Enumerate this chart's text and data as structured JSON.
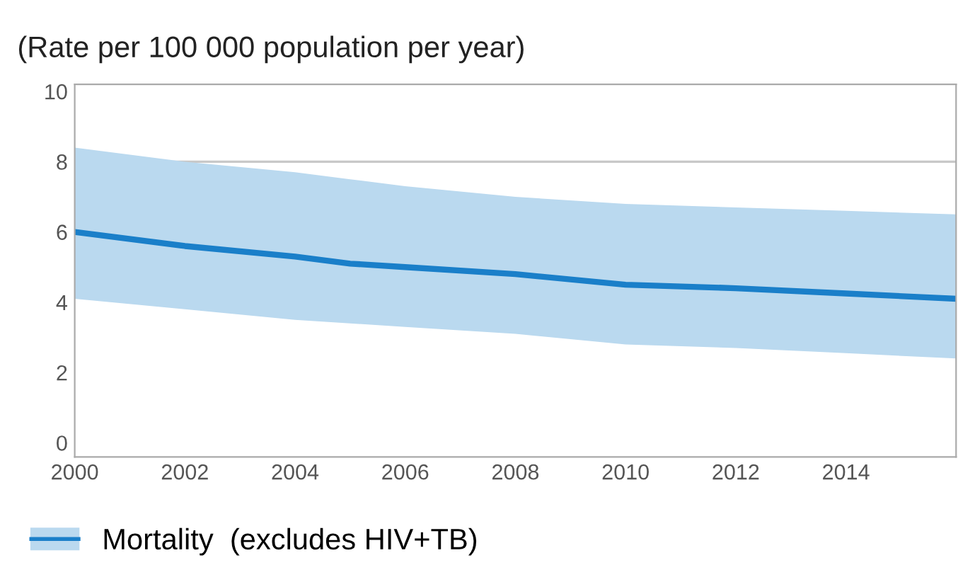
{
  "chart_data": {
    "type": "line",
    "title": "(Rate per 100 000 population per year)",
    "x": [
      2000,
      2002,
      2004,
      2005,
      2006,
      2008,
      2010,
      2012,
      2014,
      2016
    ],
    "series": [
      {
        "name": "Mortality  (excludes HIV+TB)",
        "color": "#1a7fc9",
        "values": [
          6.0,
          5.6,
          5.3,
          5.1,
          5.0,
          4.8,
          4.5,
          4.4,
          4.25,
          4.1
        ],
        "lower": [
          4.1,
          3.8,
          3.5,
          3.4,
          3.3,
          3.1,
          2.8,
          2.7,
          2.55,
          2.4
        ],
        "upper": [
          8.4,
          8.0,
          7.7,
          7.5,
          7.3,
          7.0,
          6.8,
          6.7,
          6.6,
          6.5
        ]
      }
    ],
    "xlim": [
      2000,
      2016
    ],
    "ylim": [
      -0.4,
      10.2
    ],
    "xticks": [
      2000,
      2002,
      2004,
      2006,
      2008,
      2010,
      2012,
      2014
    ],
    "yticks": [
      0,
      2,
      4,
      6,
      8,
      10
    ],
    "ref_lines": [
      {
        "axis": "y",
        "value": 8,
        "color": "#c8c8c8"
      }
    ],
    "grid": false,
    "legend": "bottom left",
    "marker": "none",
    "line_style": "solid"
  }
}
